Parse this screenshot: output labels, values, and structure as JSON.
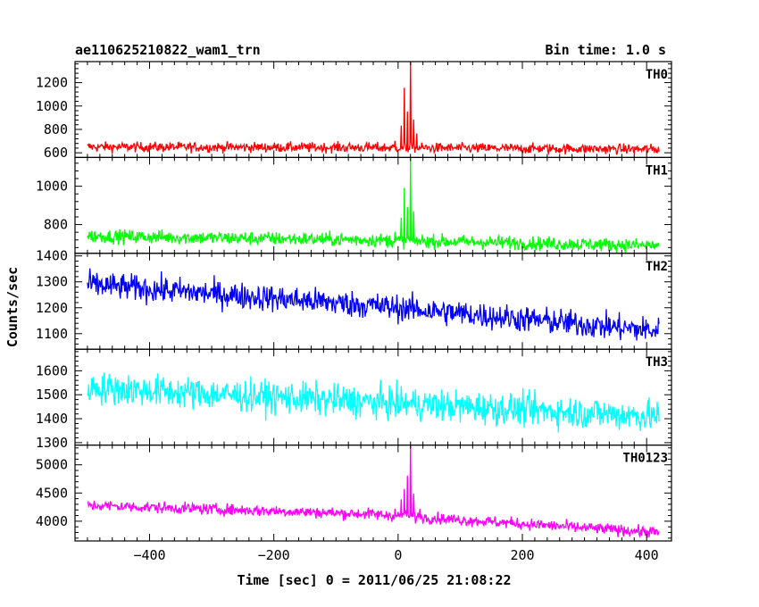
{
  "header": {
    "title": "ae110625210822_wam1_trn",
    "bin_time": "Bin time: 1.0 s"
  },
  "chart_data": {
    "type": "line",
    "title": "ae110625210822_wam1_trn",
    "bin_time_label": "Bin time: 1.0 s",
    "xlabel": "Time [sec] 0 = 2011/06/25 21:08:22",
    "ylabel": "Counts/sec",
    "xlim": [
      -520,
      440
    ],
    "x_ticks": [
      -400,
      -200,
      0,
      200,
      400
    ],
    "grid": false,
    "legend": "none",
    "sampling": {
      "x_start": -500,
      "x_end": 420,
      "bin_seconds": 1.0
    },
    "panels": [
      {
        "name": "TH0",
        "color": "#ff0000",
        "ylim": [
          560,
          1380
        ],
        "y_ticks": [
          600,
          800,
          1000,
          1200
        ],
        "trend": [
          [
            -500,
            650
          ],
          [
            -50,
            645
          ],
          [
            420,
            630
          ]
        ],
        "noise_amplitude": 38,
        "spikes": [
          [
            -5,
            700
          ],
          [
            5,
            820
          ],
          [
            10,
            1150
          ],
          [
            15,
            950
          ],
          [
            20,
            1380
          ],
          [
            25,
            900
          ],
          [
            30,
            760
          ]
        ]
      },
      {
        "name": "TH1",
        "color": "#00ff00",
        "ylim": [
          650,
          1150
        ],
        "y_ticks": [
          800,
          1000
        ],
        "trend": [
          [
            -500,
            740
          ],
          [
            -50,
            720
          ],
          [
            420,
            690
          ]
        ],
        "noise_amplitude": 32,
        "spikes": [
          [
            -5,
            760
          ],
          [
            5,
            830
          ],
          [
            10,
            980
          ],
          [
            15,
            900
          ],
          [
            20,
            1140
          ],
          [
            25,
            850
          ]
        ]
      },
      {
        "name": "TH2",
        "color": "#0000ff",
        "ylim": [
          1040,
          1410
        ],
        "y_ticks": [
          1100,
          1200,
          1300,
          1400
        ],
        "trend": [
          [
            -500,
            1290
          ],
          [
            -50,
            1210
          ],
          [
            420,
            1110
          ]
        ],
        "noise_amplitude": 46,
        "spikes": []
      },
      {
        "name": "TH3",
        "color": "#00ffff",
        "ylim": [
          1290,
          1690
        ],
        "y_ticks": [
          1300,
          1400,
          1500,
          1600
        ],
        "trend": [
          [
            -500,
            1530
          ],
          [
            -50,
            1470
          ],
          [
            420,
            1410
          ]
        ],
        "noise_amplitude": 60,
        "spikes": []
      },
      {
        "name": "TH0123",
        "color": "#ff00ff",
        "ylim": [
          3650,
          5350
        ],
        "y_ticks": [
          4000,
          4500,
          5000
        ],
        "trend": [
          [
            -500,
            4280
          ],
          [
            -50,
            4130
          ],
          [
            420,
            3800
          ]
        ],
        "noise_amplitude": 90,
        "spikes": [
          [
            -5,
            4200
          ],
          [
            5,
            4400
          ],
          [
            10,
            4600
          ],
          [
            15,
            4800
          ],
          [
            20,
            5350
          ],
          [
            25,
            4500
          ],
          [
            35,
            4250
          ]
        ]
      }
    ]
  }
}
